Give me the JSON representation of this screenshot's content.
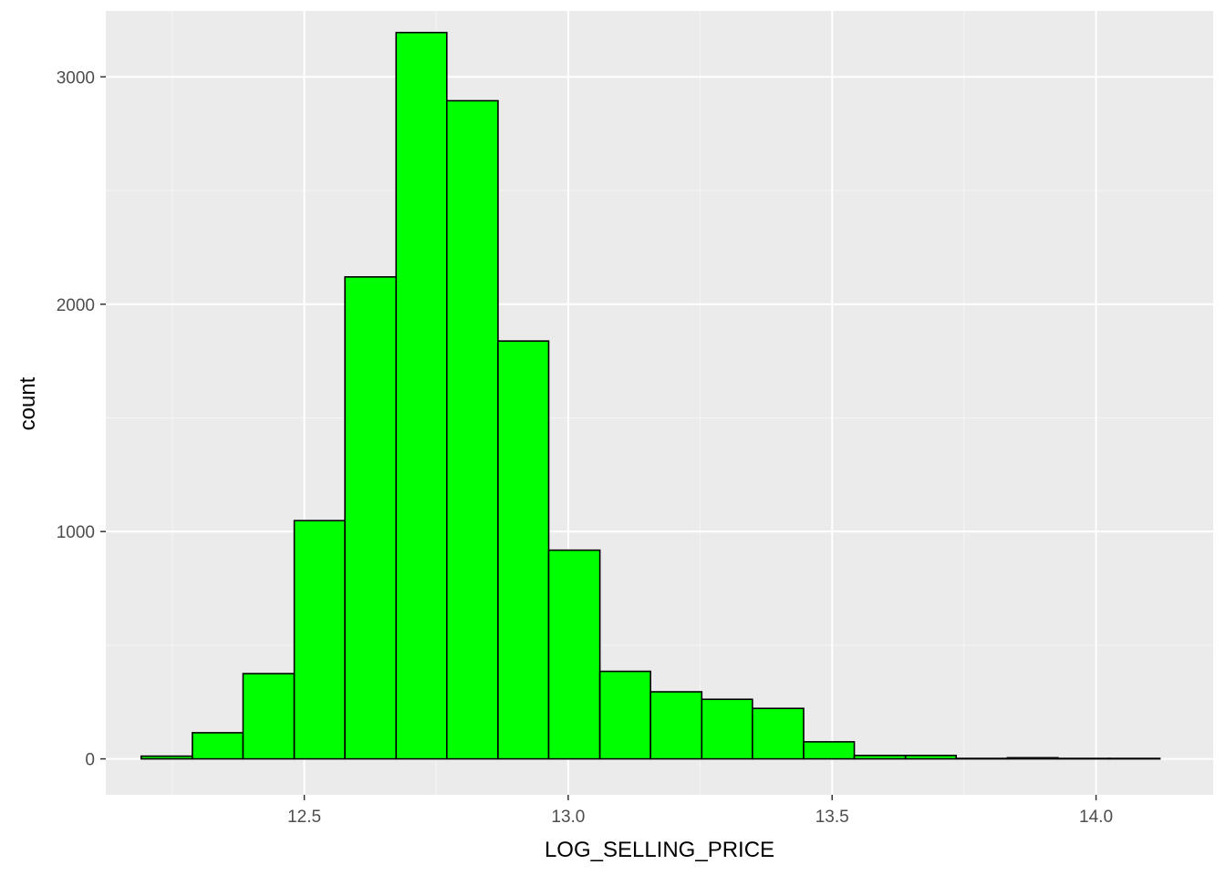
{
  "chart_data": {
    "type": "bar",
    "subtype": "histogram",
    "xlabel": "LOG_SELLING_PRICE",
    "ylabel": "count",
    "xlim": [
      12.124,
      14.222
    ],
    "ylim": [
      -158,
      3290
    ],
    "x_ticks": [
      "12.5",
      "13.0",
      "13.5",
      "14.0"
    ],
    "x_tick_values": [
      12.5,
      13.0,
      13.5,
      14.0
    ],
    "y_ticks": [
      "0",
      "1000",
      "2000",
      "3000"
    ],
    "y_tick_values": [
      0,
      1000,
      2000,
      3000
    ],
    "bin_width": 0.0965,
    "bins": [
      {
        "x_start": 12.191,
        "x_end": 12.288,
        "count": 12
      },
      {
        "x_start": 12.288,
        "x_end": 12.384,
        "count": 115
      },
      {
        "x_start": 12.384,
        "x_end": 12.481,
        "count": 375
      },
      {
        "x_start": 12.481,
        "x_end": 12.577,
        "count": 1048
      },
      {
        "x_start": 12.577,
        "x_end": 12.674,
        "count": 2120
      },
      {
        "x_start": 12.674,
        "x_end": 12.77,
        "count": 3195
      },
      {
        "x_start": 12.77,
        "x_end": 12.867,
        "count": 2895
      },
      {
        "x_start": 12.867,
        "x_end": 12.963,
        "count": 1838
      },
      {
        "x_start": 12.963,
        "x_end": 13.06,
        "count": 918
      },
      {
        "x_start": 13.06,
        "x_end": 13.156,
        "count": 385
      },
      {
        "x_start": 13.156,
        "x_end": 13.253,
        "count": 295
      },
      {
        "x_start": 13.253,
        "x_end": 13.349,
        "count": 262
      },
      {
        "x_start": 13.349,
        "x_end": 13.446,
        "count": 222
      },
      {
        "x_start": 13.446,
        "x_end": 13.542,
        "count": 75
      },
      {
        "x_start": 13.542,
        "x_end": 13.639,
        "count": 15
      },
      {
        "x_start": 13.639,
        "x_end": 13.735,
        "count": 15
      },
      {
        "x_start": 13.735,
        "x_end": 13.832,
        "count": 2
      },
      {
        "x_start": 13.832,
        "x_end": 13.928,
        "count": 5
      },
      {
        "x_start": 13.928,
        "x_end": 14.025,
        "count": 2
      },
      {
        "x_start": 14.025,
        "x_end": 14.121,
        "count": 2
      }
    ],
    "grid": true,
    "legend": "none",
    "colors": {
      "panel_background": "#ebebeb",
      "grid_major": "#ffffff",
      "grid_minor": "#f5f5f5",
      "bar_fill": "#00ff00",
      "bar_outline": "#000000",
      "tick_text": "#4d4d4d",
      "axis_title": "#000000"
    }
  }
}
